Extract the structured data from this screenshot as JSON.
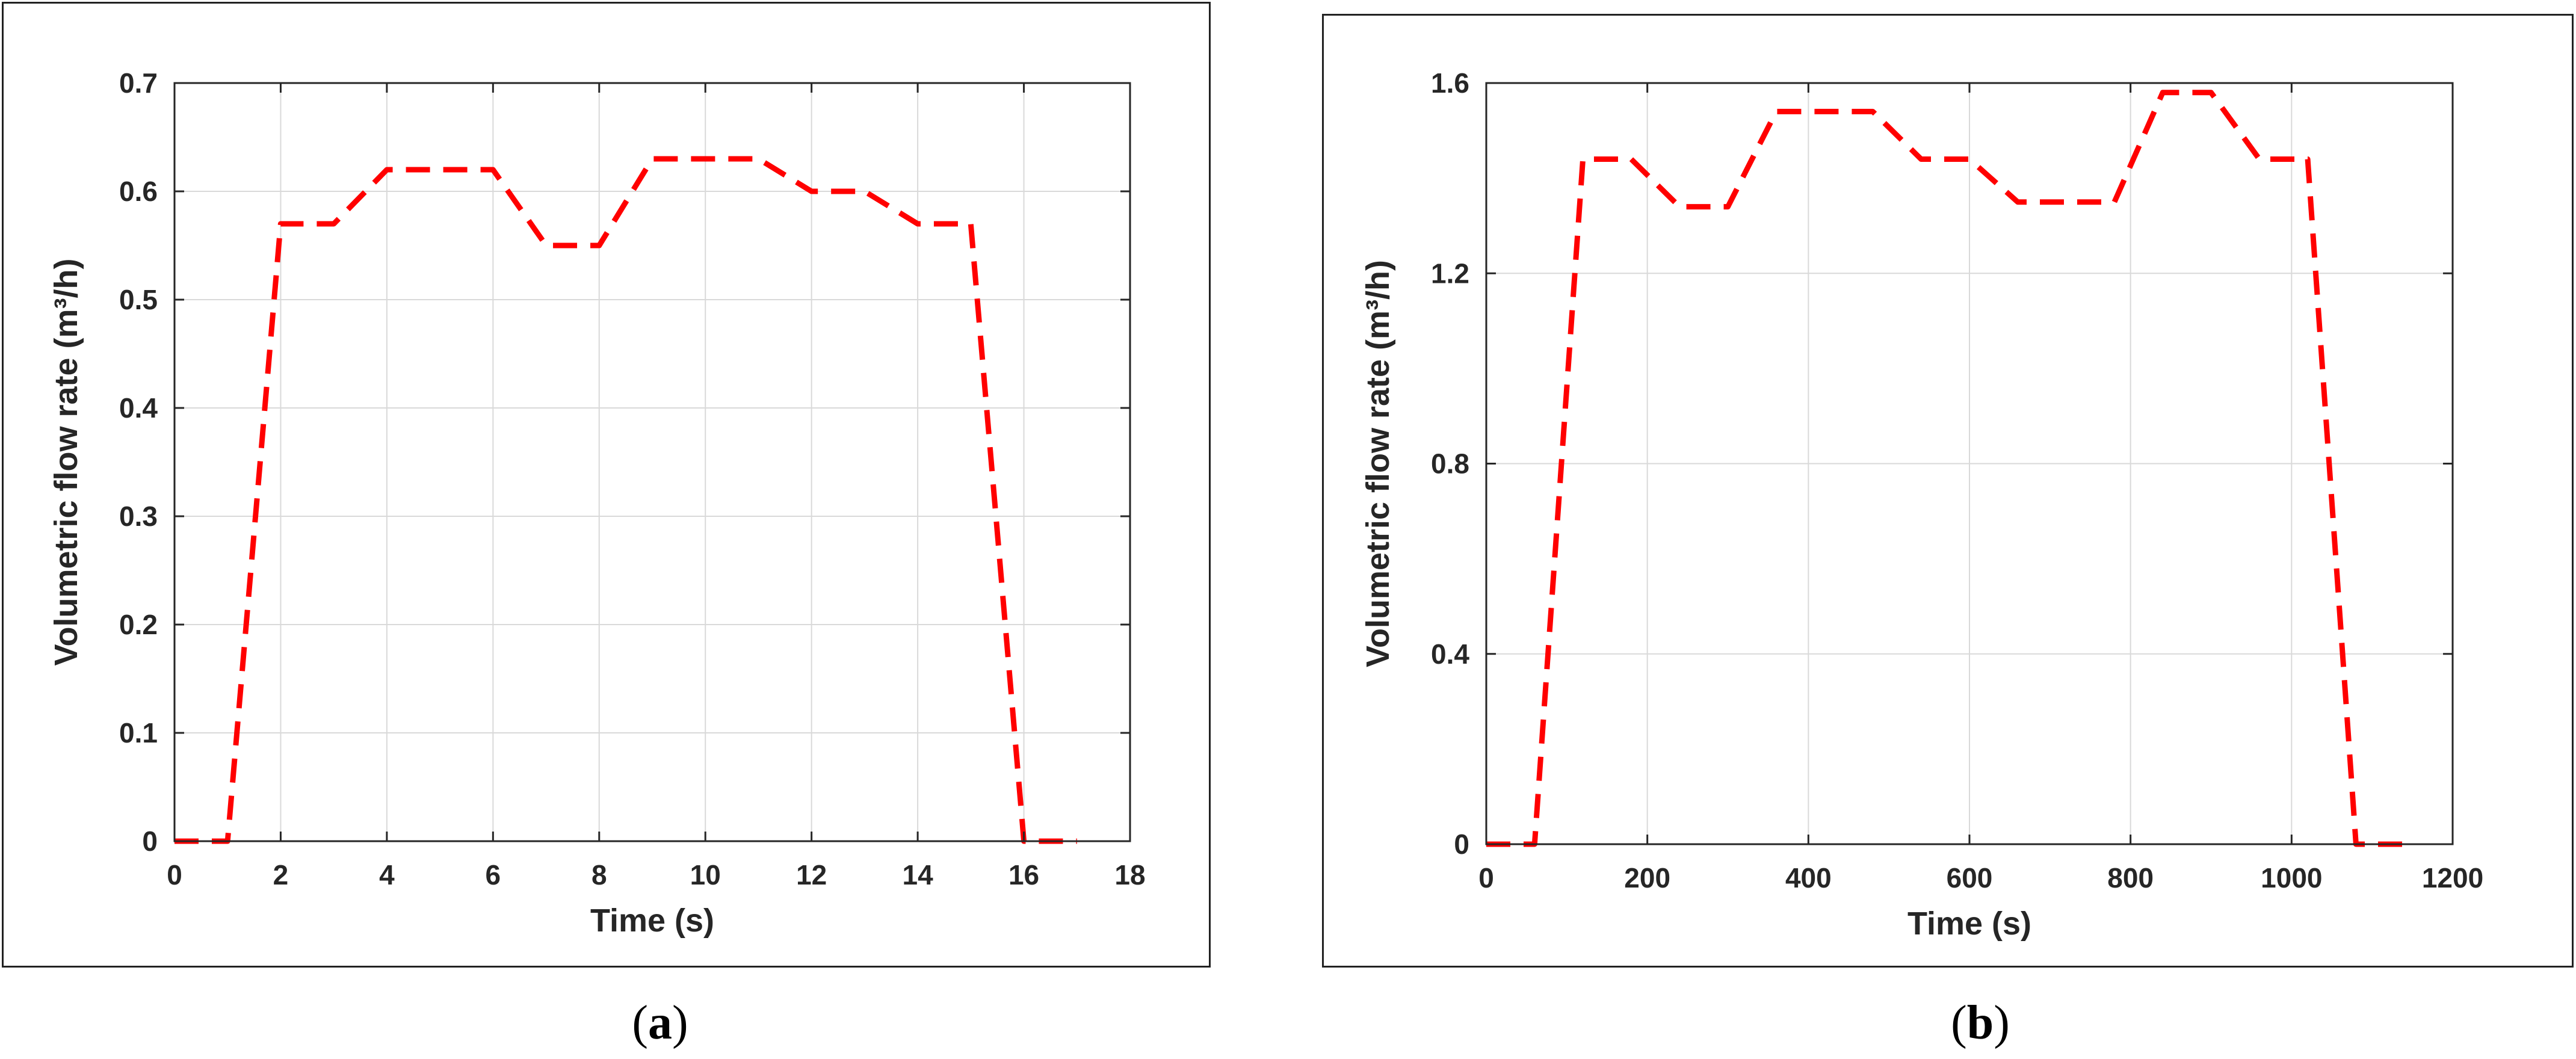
{
  "captions": {
    "a": "a",
    "b": "b"
  },
  "colors": {
    "series": "#ff0000",
    "grid": "#d9d9d9",
    "axis": "#262626"
  },
  "chart_data": [
    {
      "id": "a",
      "type": "line",
      "title": "",
      "xlabel": "Time (s)",
      "ylabel": "Volumetric flow rate (m³/h)",
      "xlim": [
        0,
        18
      ],
      "ylim": [
        0,
        0.7
      ],
      "xticks": [
        0,
        2,
        4,
        6,
        8,
        10,
        12,
        14,
        16,
        18
      ],
      "yticks": [
        0,
        0.1,
        0.2,
        0.3,
        0.4,
        0.5,
        0.6,
        0.7
      ],
      "grid": true,
      "line_style": "dashed",
      "series": [
        {
          "x": [
            0,
            1,
            2,
            3,
            4,
            5,
            6,
            7,
            8,
            9,
            10,
            11,
            12,
            13,
            14,
            15,
            16,
            17
          ],
          "values": [
            0,
            0,
            0.57,
            0.57,
            0.62,
            0.62,
            0.62,
            0.55,
            0.55,
            0.63,
            0.63,
            0.63,
            0.6,
            0.6,
            0.57,
            0.57,
            0,
            0
          ]
        }
      ]
    },
    {
      "id": "b",
      "type": "line",
      "title": "",
      "xlabel": "Time (s)",
      "ylabel": "Volumetric flow rate (m³/h)",
      "xlim": [
        0,
        1200
      ],
      "ylim": [
        0,
        1.6
      ],
      "xticks": [
        0,
        200,
        400,
        600,
        800,
        1000,
        1200
      ],
      "yticks": [
        0,
        0.4,
        0.8,
        1.2,
        1.6
      ],
      "grid": true,
      "line_style": "dashed",
      "series": [
        {
          "x": [
            0,
            60,
            120,
            180,
            240,
            300,
            360,
            420,
            480,
            540,
            600,
            660,
            720,
            780,
            840,
            900,
            960,
            1020,
            1080,
            1140
          ],
          "values": [
            0,
            0,
            1.44,
            1.44,
            1.34,
            1.34,
            1.54,
            1.54,
            1.54,
            1.44,
            1.44,
            1.35,
            1.35,
            1.35,
            1.58,
            1.58,
            1.44,
            1.44,
            0,
            0
          ]
        }
      ]
    }
  ]
}
